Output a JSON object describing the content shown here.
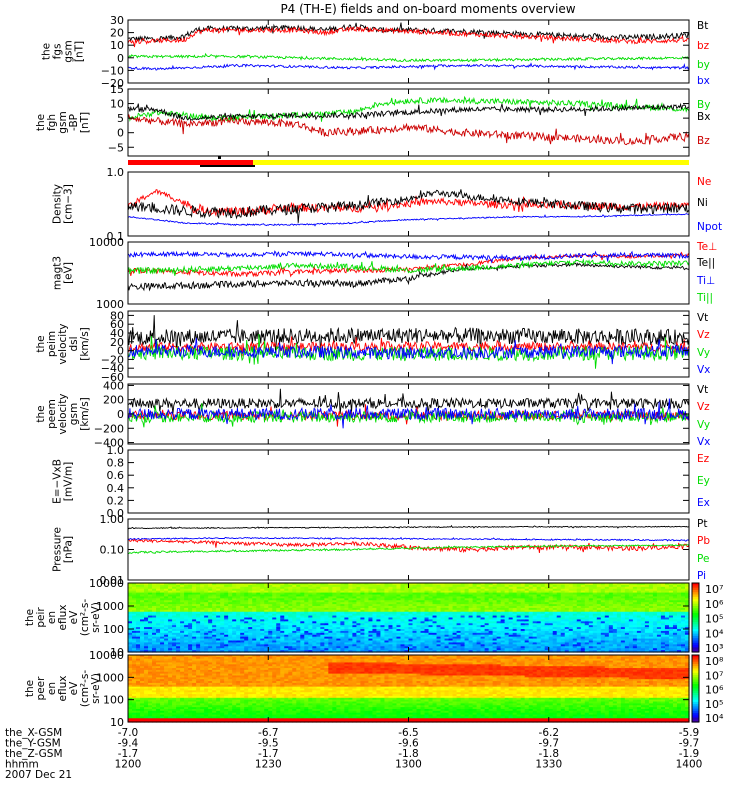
{
  "title": "P4 (TH-E) fields and on-board moments overview",
  "colors": {
    "black": "#000000",
    "red": "#ff0000",
    "green": "#00dd00",
    "blue": "#0000ff",
    "yellow": "#ffff00"
  },
  "x_axis": {
    "tick_positions": [
      1200,
      1230,
      1300,
      1330,
      1400
    ],
    "rows": [
      {
        "label": "the_X-GSM",
        "values": [
          "-7.0",
          "-6.7",
          "-6.5",
          "-6.2",
          "-5.9"
        ]
      },
      {
        "label": "the_Y-GSM",
        "values": [
          "-9.4",
          "-9.5",
          "-9.6",
          "-9.7",
          "-9.7"
        ]
      },
      {
        "label": "the_Z-GSM",
        "values": [
          "-1.7",
          "-1.7",
          "-1.8",
          "-1.8",
          "-1.9"
        ]
      },
      {
        "label": "hhmm",
        "values": [
          "1200",
          "1230",
          "1300",
          "1330",
          "1400"
        ]
      }
    ],
    "date": "2007 Dec 21"
  },
  "chart_data": [
    {
      "id": "p1",
      "type": "line",
      "ylabel_lines": [
        "the",
        "fgs",
        "gsm",
        "[nT]"
      ],
      "ylim": [
        -20,
        30
      ],
      "ticks": [
        {
          "v": 30,
          "t": "30"
        },
        {
          "v": 20,
          "t": "20"
        },
        {
          "v": 10,
          "t": "10"
        },
        {
          "v": 0,
          "t": "0"
        },
        {
          "v": -10,
          "t": "−10"
        },
        {
          "v": -20,
          "t": "−20"
        }
      ],
      "series": [
        {
          "name": "Bt",
          "color": "#000000",
          "x": [
            0,
            0.05,
            0.1,
            0.12,
            0.14,
            0.2,
            0.3,
            0.35,
            0.4,
            0.45,
            0.5,
            0.6,
            0.7,
            0.8,
            0.9,
            0.95,
            1
          ],
          "values": [
            15,
            15,
            17,
            22,
            23,
            23,
            24,
            22,
            25,
            22,
            22,
            21,
            19,
            17,
            16,
            17,
            18
          ],
          "noise": 2.2
        },
        {
          "name": "bz",
          "color": "#ff0000",
          "x": [
            0,
            0.1,
            0.12,
            0.14,
            0.3,
            0.35,
            0.4,
            0.5,
            0.6,
            0.7,
            0.8,
            0.9,
            1
          ],
          "values": [
            13,
            14,
            20,
            22,
            22,
            20,
            23,
            21,
            19,
            17,
            15,
            13,
            14
          ],
          "noise": 1.8
        },
        {
          "name": "by",
          "color": "#00dd00",
          "x": [
            0,
            0.2,
            0.4,
            0.5,
            0.6,
            0.8,
            1
          ],
          "values": [
            1,
            1,
            -1,
            -2,
            -2,
            -1,
            0
          ],
          "noise": 1.0
        },
        {
          "name": "bx",
          "color": "#0000ff",
          "x": [
            0,
            0.05,
            0.2,
            0.4,
            0.5,
            0.6,
            0.8,
            1
          ],
          "values": [
            -8,
            -9,
            -6,
            -8,
            -7,
            -6,
            -7,
            -8
          ],
          "noise": 0.9
        }
      ]
    },
    {
      "id": "p2",
      "type": "line",
      "ylabel_lines": [
        "the",
        "fgh",
        "gsm",
        "-BP",
        "[nT]"
      ],
      "ylim": [
        -8,
        15
      ],
      "ticks": [
        {
          "v": 15,
          "t": "15"
        },
        {
          "v": 10,
          "t": "10"
        },
        {
          "v": 5,
          "t": "5"
        },
        {
          "v": 0,
          "t": "0"
        },
        {
          "v": -5,
          "t": "−5"
        }
      ],
      "series": [
        {
          "name": "By",
          "color": "#00dd00",
          "x": [
            0,
            0.05,
            0.15,
            0.3,
            0.4,
            0.45,
            0.5,
            0.6,
            0.8,
            1
          ],
          "values": [
            5,
            7,
            5,
            6,
            7,
            10,
            11,
            11,
            10,
            8
          ],
          "noise": 1.0
        },
        {
          "name": "Bx",
          "color": "#000000",
          "x": [
            0,
            0.05,
            0.1,
            0.3,
            0.4,
            0.5,
            0.6,
            0.8,
            1
          ],
          "values": [
            8,
            8,
            5,
            6,
            6,
            7,
            8,
            8,
            9
          ],
          "noise": 0.9
        },
        {
          "name": "Bz",
          "color": "#cc0000",
          "x": [
            0,
            0.1,
            0.2,
            0.3,
            0.35,
            0.45,
            0.5,
            0.6,
            0.8,
            0.9,
            1
          ],
          "values": [
            5,
            3,
            4,
            3,
            0,
            1,
            2,
            0,
            -2,
            -3,
            -1
          ],
          "noise": 1.3
        }
      ]
    },
    {
      "id": "p3",
      "type": "line",
      "ylabel_lines": [
        "Density",
        "[cm−3]"
      ],
      "ylim": [
        0.1,
        1.0
      ],
      "log": true,
      "ticks": [
        {
          "v": 1.0,
          "t": "1.0"
        },
        {
          "v": 0.1,
          "t": "0.1"
        }
      ],
      "series": [
        {
          "name": "Ne",
          "color": "#ff0000",
          "x": [
            0,
            0.05,
            0.12,
            0.2,
            0.3,
            0.4,
            0.5,
            0.55,
            0.6,
            0.7,
            0.8,
            0.9,
            1
          ],
          "values": [
            0.27,
            0.5,
            0.26,
            0.24,
            0.28,
            0.27,
            0.32,
            0.35,
            0.33,
            0.3,
            0.3,
            0.29,
            0.3
          ],
          "noise": 0.04
        },
        {
          "name": "Ni",
          "color": "#000000",
          "x": [
            0,
            0.1,
            0.2,
            0.3,
            0.4,
            0.5,
            0.55,
            0.6,
            0.7,
            0.8,
            0.9,
            1
          ],
          "values": [
            0.3,
            0.25,
            0.24,
            0.27,
            0.3,
            0.38,
            0.48,
            0.42,
            0.35,
            0.3,
            0.27,
            0.28
          ],
          "noise": 0.05
        },
        {
          "name": "Npot",
          "color": "#0000ff",
          "x": [
            0,
            0.05,
            0.1,
            0.2,
            0.3,
            0.4,
            0.5,
            0.6,
            0.7,
            0.8,
            0.9,
            1
          ],
          "values": [
            0.2,
            0.18,
            0.16,
            0.15,
            0.15,
            0.16,
            0.18,
            0.19,
            0.2,
            0.2,
            0.21,
            0.22
          ],
          "noise": 0.004
        }
      ]
    },
    {
      "id": "p4",
      "type": "line",
      "ylabel_lines": [
        "magt3",
        "[eV]"
      ],
      "ylim": [
        1000,
        10000
      ],
      "log": true,
      "ticks": [
        {
          "v": 10000,
          "t": "10000"
        },
        {
          "v": 1000,
          "t": "1000"
        }
      ],
      "series": [
        {
          "name": "Te⊥",
          "color": "#ff0000",
          "x": [
            0,
            0.1,
            0.2,
            0.3,
            0.4,
            0.5,
            0.6,
            0.7,
            0.8,
            0.9,
            1
          ],
          "values": [
            3500,
            3300,
            3000,
            3300,
            3500,
            3600,
            4300,
            5500,
            6000,
            5800,
            6200
          ],
          "noise": 300
        },
        {
          "name": "Te||",
          "color": "#000000",
          "x": [
            0,
            0.1,
            0.2,
            0.3,
            0.4,
            0.5,
            0.6,
            0.7,
            0.8,
            0.9,
            1
          ],
          "values": [
            1900,
            2000,
            2100,
            2200,
            2100,
            2600,
            3700,
            4100,
            4300,
            4000,
            3800
          ],
          "noise": 250
        },
        {
          "name": "Ti⊥",
          "color": "#0000ff",
          "x": [
            0,
            0.1,
            0.2,
            0.3,
            0.4,
            0.5,
            0.6,
            0.7,
            0.8,
            0.9,
            1
          ],
          "values": [
            6200,
            6500,
            6100,
            6600,
            6200,
            5800,
            5700,
            5500,
            6000,
            6200,
            6000
          ],
          "noise": 500
        },
        {
          "name": "Ti||",
          "color": "#00dd00",
          "x": [
            0,
            0.1,
            0.2,
            0.3,
            0.4,
            0.5,
            0.6,
            0.7,
            0.8,
            0.9,
            1
          ],
          "values": [
            3400,
            3600,
            3800,
            4200,
            4000,
            3500,
            3800,
            4200,
            4800,
            4500,
            4600
          ],
          "noise": 400
        }
      ]
    },
    {
      "id": "p5",
      "type": "line",
      "ylabel_lines": [
        "the",
        "peim",
        "velocity",
        "dsl",
        "[km/s]"
      ],
      "ylim": [
        -60,
        90
      ],
      "ticks": [
        {
          "v": 80,
          "t": "80"
        },
        {
          "v": 60,
          "t": "60"
        },
        {
          "v": 40,
          "t": "40"
        },
        {
          "v": 20,
          "t": "20"
        },
        {
          "v": 0,
          "t": "0"
        },
        {
          "v": -20,
          "t": "−20"
        },
        {
          "v": -40,
          "t": "−40"
        },
        {
          "v": -60,
          "t": "−60"
        }
      ],
      "series": [
        {
          "name": "Vt",
          "color": "#000000",
          "x": [
            0,
            0.5,
            1
          ],
          "values": [
            30,
            35,
            30
          ],
          "noise": 18
        },
        {
          "name": "Vz",
          "color": "#ff0000",
          "x": [
            0,
            0.5,
            1
          ],
          "values": [
            8,
            10,
            8
          ],
          "noise": 10
        },
        {
          "name": "Vy",
          "color": "#00dd00",
          "x": [
            0,
            0.5,
            1
          ],
          "values": [
            -5,
            -8,
            -5
          ],
          "noise": 16
        },
        {
          "name": "Vx",
          "color": "#0000ff",
          "x": [
            0,
            0.5,
            1
          ],
          "values": [
            0,
            -5,
            0
          ],
          "noise": 14
        }
      ]
    },
    {
      "id": "p6",
      "type": "line",
      "ylabel_lines": [
        "the",
        "peem",
        "velocity",
        "gsm",
        "[km/s]"
      ],
      "ylim": [
        -420,
        420
      ],
      "ticks": [
        {
          "v": 400,
          "t": "400"
        },
        {
          "v": 200,
          "t": "200"
        },
        {
          "v": 0,
          "t": "0"
        },
        {
          "v": -200,
          "t": "−200"
        },
        {
          "v": -400,
          "t": "−400"
        }
      ],
      "series": [
        {
          "name": "Vt",
          "color": "#000000",
          "x": [
            0,
            1
          ],
          "values": [
            150,
            150
          ],
          "noise": 70
        },
        {
          "name": "Vz",
          "color": "#ff0000",
          "x": [
            0,
            1
          ],
          "values": [
            -20,
            -20
          ],
          "noise": 60
        },
        {
          "name": "Vy",
          "color": "#00dd00",
          "x": [
            0,
            1
          ],
          "values": [
            -40,
            -40
          ],
          "noise": 80
        },
        {
          "name": "Vx",
          "color": "#0000ff",
          "x": [
            0,
            1
          ],
          "values": [
            0,
            0
          ],
          "noise": 80
        }
      ]
    },
    {
      "id": "p7",
      "type": "line",
      "ylabel_lines": [
        "E=−VxB",
        "[mV/m]"
      ],
      "ylim": [
        0,
        1.0
      ],
      "ticks": [
        {
          "v": 1.0,
          "t": "1.0"
        },
        {
          "v": 0.8,
          "t": "0.8"
        },
        {
          "v": 0.6,
          "t": "0.6"
        },
        {
          "v": 0.4,
          "t": "0.4"
        },
        {
          "v": 0.2,
          "t": "0.2"
        },
        {
          "v": 0.0,
          "t": "0.0"
        }
      ],
      "series": [
        {
          "name": "Ez",
          "color": "#ff0000",
          "x": [],
          "values": []
        },
        {
          "name": "Ey",
          "color": "#00dd00",
          "x": [],
          "values": []
        },
        {
          "name": "Ex",
          "color": "#0000ff",
          "x": [],
          "values": []
        }
      ]
    },
    {
      "id": "p8",
      "type": "line",
      "ylabel_lines": [
        "Pressure",
        "[nPa]"
      ],
      "ylim": [
        0.01,
        1.0
      ],
      "log": true,
      "ticks": [
        {
          "v": 1.0,
          "t": "1.00"
        },
        {
          "v": 0.1,
          "t": "0.10"
        },
        {
          "v": 0.01,
          "t": "0.01"
        }
      ],
      "series": [
        {
          "name": "Pt",
          "color": "#000000",
          "x": [
            0,
            0.3,
            0.6,
            1
          ],
          "values": [
            0.5,
            0.52,
            0.55,
            0.56
          ],
          "noise": 0.02
        },
        {
          "name": "Pb",
          "color": "#ff0000",
          "x": [
            0,
            0.2,
            0.3,
            0.4,
            0.5,
            0.6,
            0.7,
            0.8,
            0.9,
            1
          ],
          "values": [
            0.2,
            0.16,
            0.14,
            0.16,
            0.12,
            0.1,
            0.12,
            0.12,
            0.11,
            0.13
          ],
          "noise": 0.02
        },
        {
          "name": "Pe",
          "color": "#00dd00",
          "x": [
            0,
            0.2,
            0.4,
            0.6,
            0.8,
            1
          ],
          "values": [
            0.08,
            0.09,
            0.1,
            0.12,
            0.13,
            0.14
          ],
          "noise": 0.006
        },
        {
          "name": "Pi",
          "color": "#0000ff",
          "x": [
            0,
            0.2,
            0.4,
            0.6,
            0.8,
            1
          ],
          "values": [
            0.22,
            0.24,
            0.23,
            0.22,
            0.21,
            0.2
          ],
          "noise": 0.01
        }
      ]
    },
    {
      "id": "p9",
      "type": "heatmap",
      "ylabel_lines": [
        "the",
        "peir",
        "en",
        "eflux",
        "eV",
        "(cm²-s-",
        "sr-eV)"
      ],
      "ylim": [
        10,
        10000
      ],
      "log": true,
      "ticks": [
        {
          "v": 10000,
          "t": "10000"
        },
        {
          "v": 1000,
          "t": "1000"
        },
        {
          "v": 100,
          "t": "100"
        },
        {
          "v": 10,
          "t": "10"
        }
      ],
      "colorbar": {
        "labels": [
          "10⁷",
          "10⁶",
          "10⁵",
          "10⁴",
          "10³"
        ]
      }
    },
    {
      "id": "p10",
      "type": "heatmap",
      "ylabel_lines": [
        "the",
        "peer",
        "en",
        "eflux",
        "eV",
        "(cm²-s-",
        "sr-eV)"
      ],
      "ylim": [
        10,
        10000
      ],
      "log": true,
      "ticks": [
        {
          "v": 10000,
          "t": "10000"
        },
        {
          "v": 1000,
          "t": "1000"
        },
        {
          "v": 100,
          "t": "100"
        },
        {
          "v": 10,
          "t": "10"
        }
      ],
      "colorbar": {
        "labels": [
          "10⁸",
          "10⁷",
          "10⁶",
          "10⁵",
          "10⁴"
        ]
      }
    }
  ]
}
